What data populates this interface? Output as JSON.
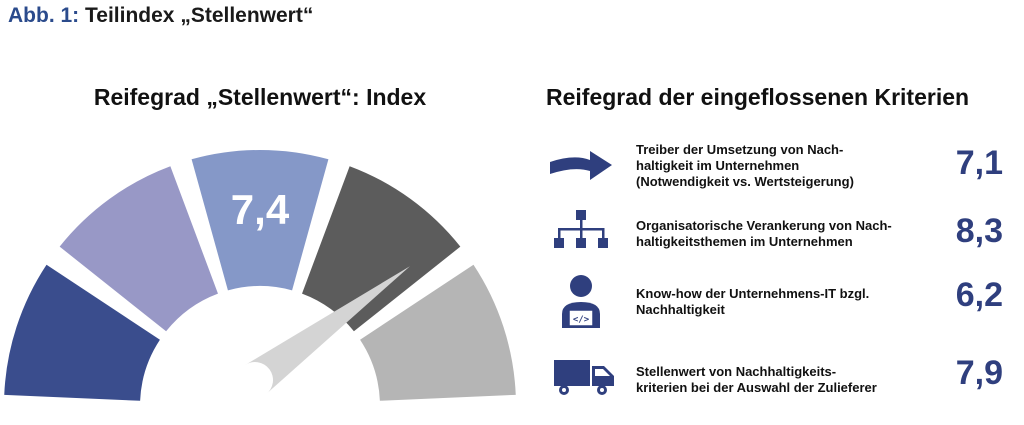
{
  "figure": {
    "prefix": "Abb. 1:",
    "title": "Teilindex „Stellenwert“"
  },
  "gauge": {
    "heading": "Reifegrad „Stellenwert“: Index",
    "value_label": "7,4",
    "segments": [
      {
        "color": "#3a4d8d"
      },
      {
        "color": "#9898c6"
      },
      {
        "color": "#8598c8"
      },
      {
        "color": "#5c5c5c"
      },
      {
        "color": "#b5b5b5"
      }
    ],
    "needle_color": "#d4d4d4"
  },
  "criteria": {
    "heading": "Reifegrad der eingeflossenen Kriterien",
    "items": [
      {
        "icon": "arrow-icon",
        "lines": [
          "Treiber der Umsetzung von Nach-",
          "haltigkeit im Unternehmen",
          "(Notwendigkeit vs. Wertsteigerung)"
        ],
        "value": "7,1"
      },
      {
        "icon": "org-chart-icon",
        "lines": [
          "Organisatorische Verankerung von Nach-",
          "haltigkeitsthemen im Unternehmen"
        ],
        "value": "8,3"
      },
      {
        "icon": "developer-icon",
        "lines": [
          "Know-how der Unternehmens-IT bzgl.",
          "Nachhaltigkeit"
        ],
        "value": "6,2"
      },
      {
        "icon": "truck-icon",
        "lines": [
          "Stellenwert von Nachhaltigkeits-",
          "kriterien bei der Auswahl der Zulieferer"
        ],
        "value": "7,9"
      }
    ]
  },
  "chart_data": {
    "type": "gauge",
    "title": "Reifegrad „Stellenwert“: Index",
    "value": 7.4,
    "segment_count": 5,
    "criteria": [
      {
        "label": "Treiber der Umsetzung von Nachhaltigkeit im Unternehmen (Notwendigkeit vs. Wertsteigerung)",
        "value": 7.1
      },
      {
        "label": "Organisatorische Verankerung von Nachhaltigkeitsthemen im Unternehmen",
        "value": 8.3
      },
      {
        "label": "Know-how der Unternehmens-IT bzgl. Nachhaltigkeit",
        "value": 6.2
      },
      {
        "label": "Stellenwert von Nachhaltigkeitskriterien bei der Auswahl der Zulieferer",
        "value": 7.9
      }
    ],
    "accent_color": "#2f3f7e"
  }
}
